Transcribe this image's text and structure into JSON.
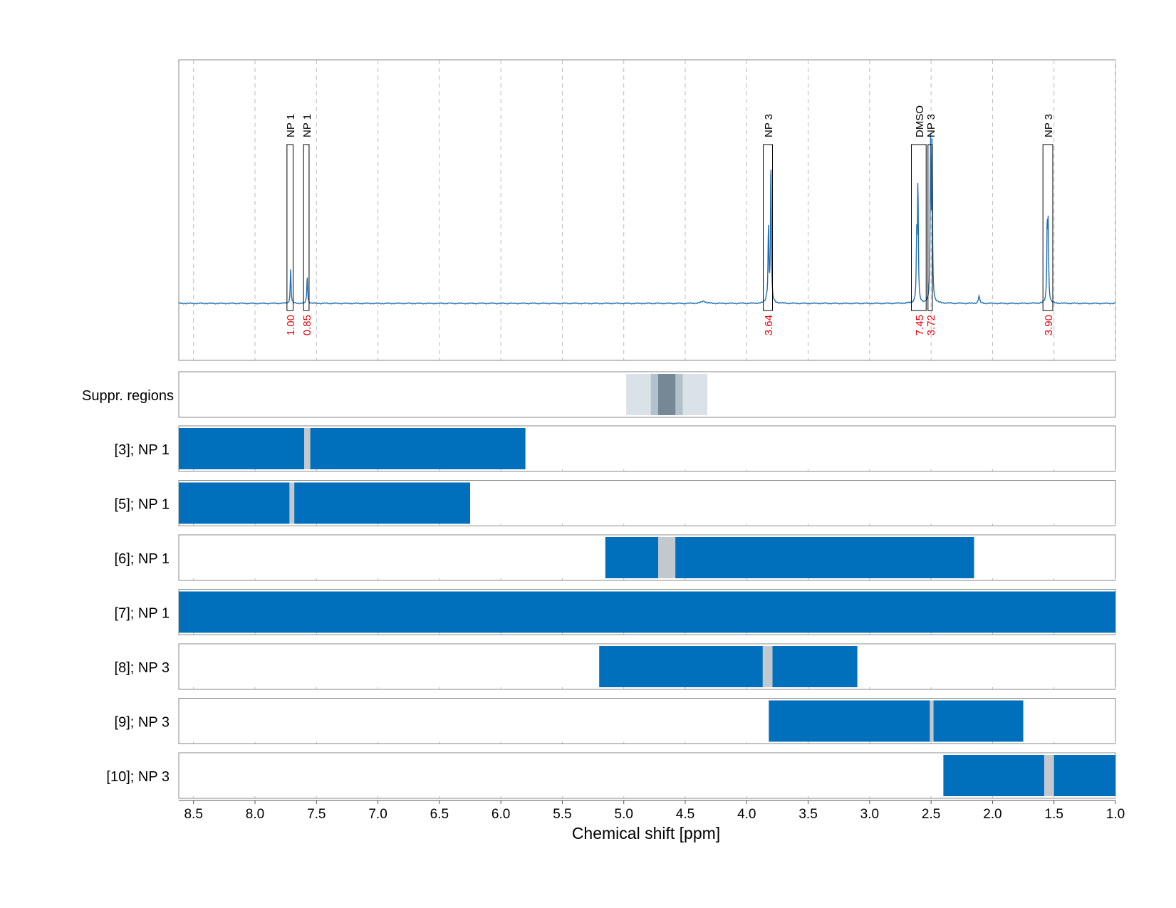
{
  "chart_data": {
    "type": "line",
    "xlabel": "Chemical shift [ppm]",
    "xlim": [
      8.62,
      1.0
    ],
    "x_ticks": [
      "8.5",
      "8.0",
      "7.5",
      "7.0",
      "6.5",
      "6.0",
      "5.5",
      "5.0",
      "4.5",
      "4.0",
      "3.5",
      "3.0",
      "2.5",
      "2.0",
      "1.5",
      "1.0"
    ],
    "colors": {
      "spectrum": "#1f6fb4",
      "bar": "#0070bc",
      "peak_gap": "#c2c8cd",
      "suppression_outer": "#dae2e8",
      "suppression_mid": "#b3c1cb",
      "suppression_inner": "#768896",
      "annotation_value": "#e8000b",
      "frame": "#888888"
    },
    "spectrum": {
      "baseline": 0,
      "peaks": [
        {
          "x": 7.71,
          "height": 0.22,
          "width": 0.004
        },
        {
          "x": 7.575,
          "height": 0.18,
          "width": 0.004
        },
        {
          "x": 4.35,
          "height": 0.015,
          "width": 0.02
        },
        {
          "x": 3.84,
          "height": 0.02,
          "width": 0.006
        },
        {
          "x": 3.803,
          "height": 0.94,
          "width": 0.004
        },
        {
          "x": 3.823,
          "height": 0.5,
          "width": 0.004
        },
        {
          "x": 2.607,
          "height": 0.76,
          "width": 0.004
        },
        {
          "x": 2.617,
          "height": 0.4,
          "width": 0.004
        },
        {
          "x": 2.504,
          "height": 1.0,
          "width": 0.004
        },
        {
          "x": 2.492,
          "height": 0.97,
          "width": 0.004
        },
        {
          "x": 2.11,
          "height": 0.05,
          "width": 0.006
        },
        {
          "x": 1.555,
          "height": 0.49,
          "width": 0.004
        },
        {
          "x": 1.547,
          "height": 0.47,
          "width": 0.004
        }
      ],
      "annotations": [
        {
          "label": "NP 1",
          "value": "1.00",
          "x_from": 7.74,
          "x_to": 7.69
        },
        {
          "label": "NP 1",
          "value": "0.85",
          "x_from": 7.605,
          "x_to": 7.56
        },
        {
          "label": "NP 3",
          "value": "3.64",
          "x_from": 3.865,
          "x_to": 3.79
        },
        {
          "label": "DMSO",
          "value": "7.45",
          "x_from": 2.66,
          "x_to": 2.54
        },
        {
          "label": "NP 3",
          "value": "3.72",
          "x_from": 2.525,
          "x_to": 2.49
        },
        {
          "label": "NP 3",
          "value": "3.90",
          "x_from": 1.59,
          "x_to": 1.51
        }
      ]
    },
    "suppression": {
      "label": "Suppr. regions",
      "bands": [
        {
          "from": 4.98,
          "to": 4.32,
          "level": "outer"
        },
        {
          "from": 4.78,
          "to": 4.52,
          "level": "mid"
        },
        {
          "from": 4.72,
          "to": 4.58,
          "level": "inner"
        }
      ]
    },
    "tracks": [
      {
        "label": "[3]; NP 1",
        "from": 8.62,
        "to": 5.8,
        "gap": [
          7.6,
          7.55
        ]
      },
      {
        "label": "[5]; NP 1",
        "from": 8.62,
        "to": 6.25,
        "gap": [
          7.72,
          7.68
        ]
      },
      {
        "label": "[6]; NP 1",
        "from": 5.15,
        "to": 2.15,
        "gap": [
          4.72,
          4.58
        ]
      },
      {
        "label": "[7]; NP 1",
        "from": 8.62,
        "to": 1.0,
        "gap": null
      },
      {
        "label": "[8]; NP 3",
        "from": 5.2,
        "to": 3.1,
        "gap": [
          3.87,
          3.79
        ]
      },
      {
        "label": "[9]; NP 3",
        "from": 3.82,
        "to": 1.75,
        "gap": [
          2.51,
          2.48
        ]
      },
      {
        "label": "[10]; NP 3",
        "from": 2.4,
        "to": 1.0,
        "gap": [
          1.58,
          1.5
        ]
      }
    ]
  }
}
